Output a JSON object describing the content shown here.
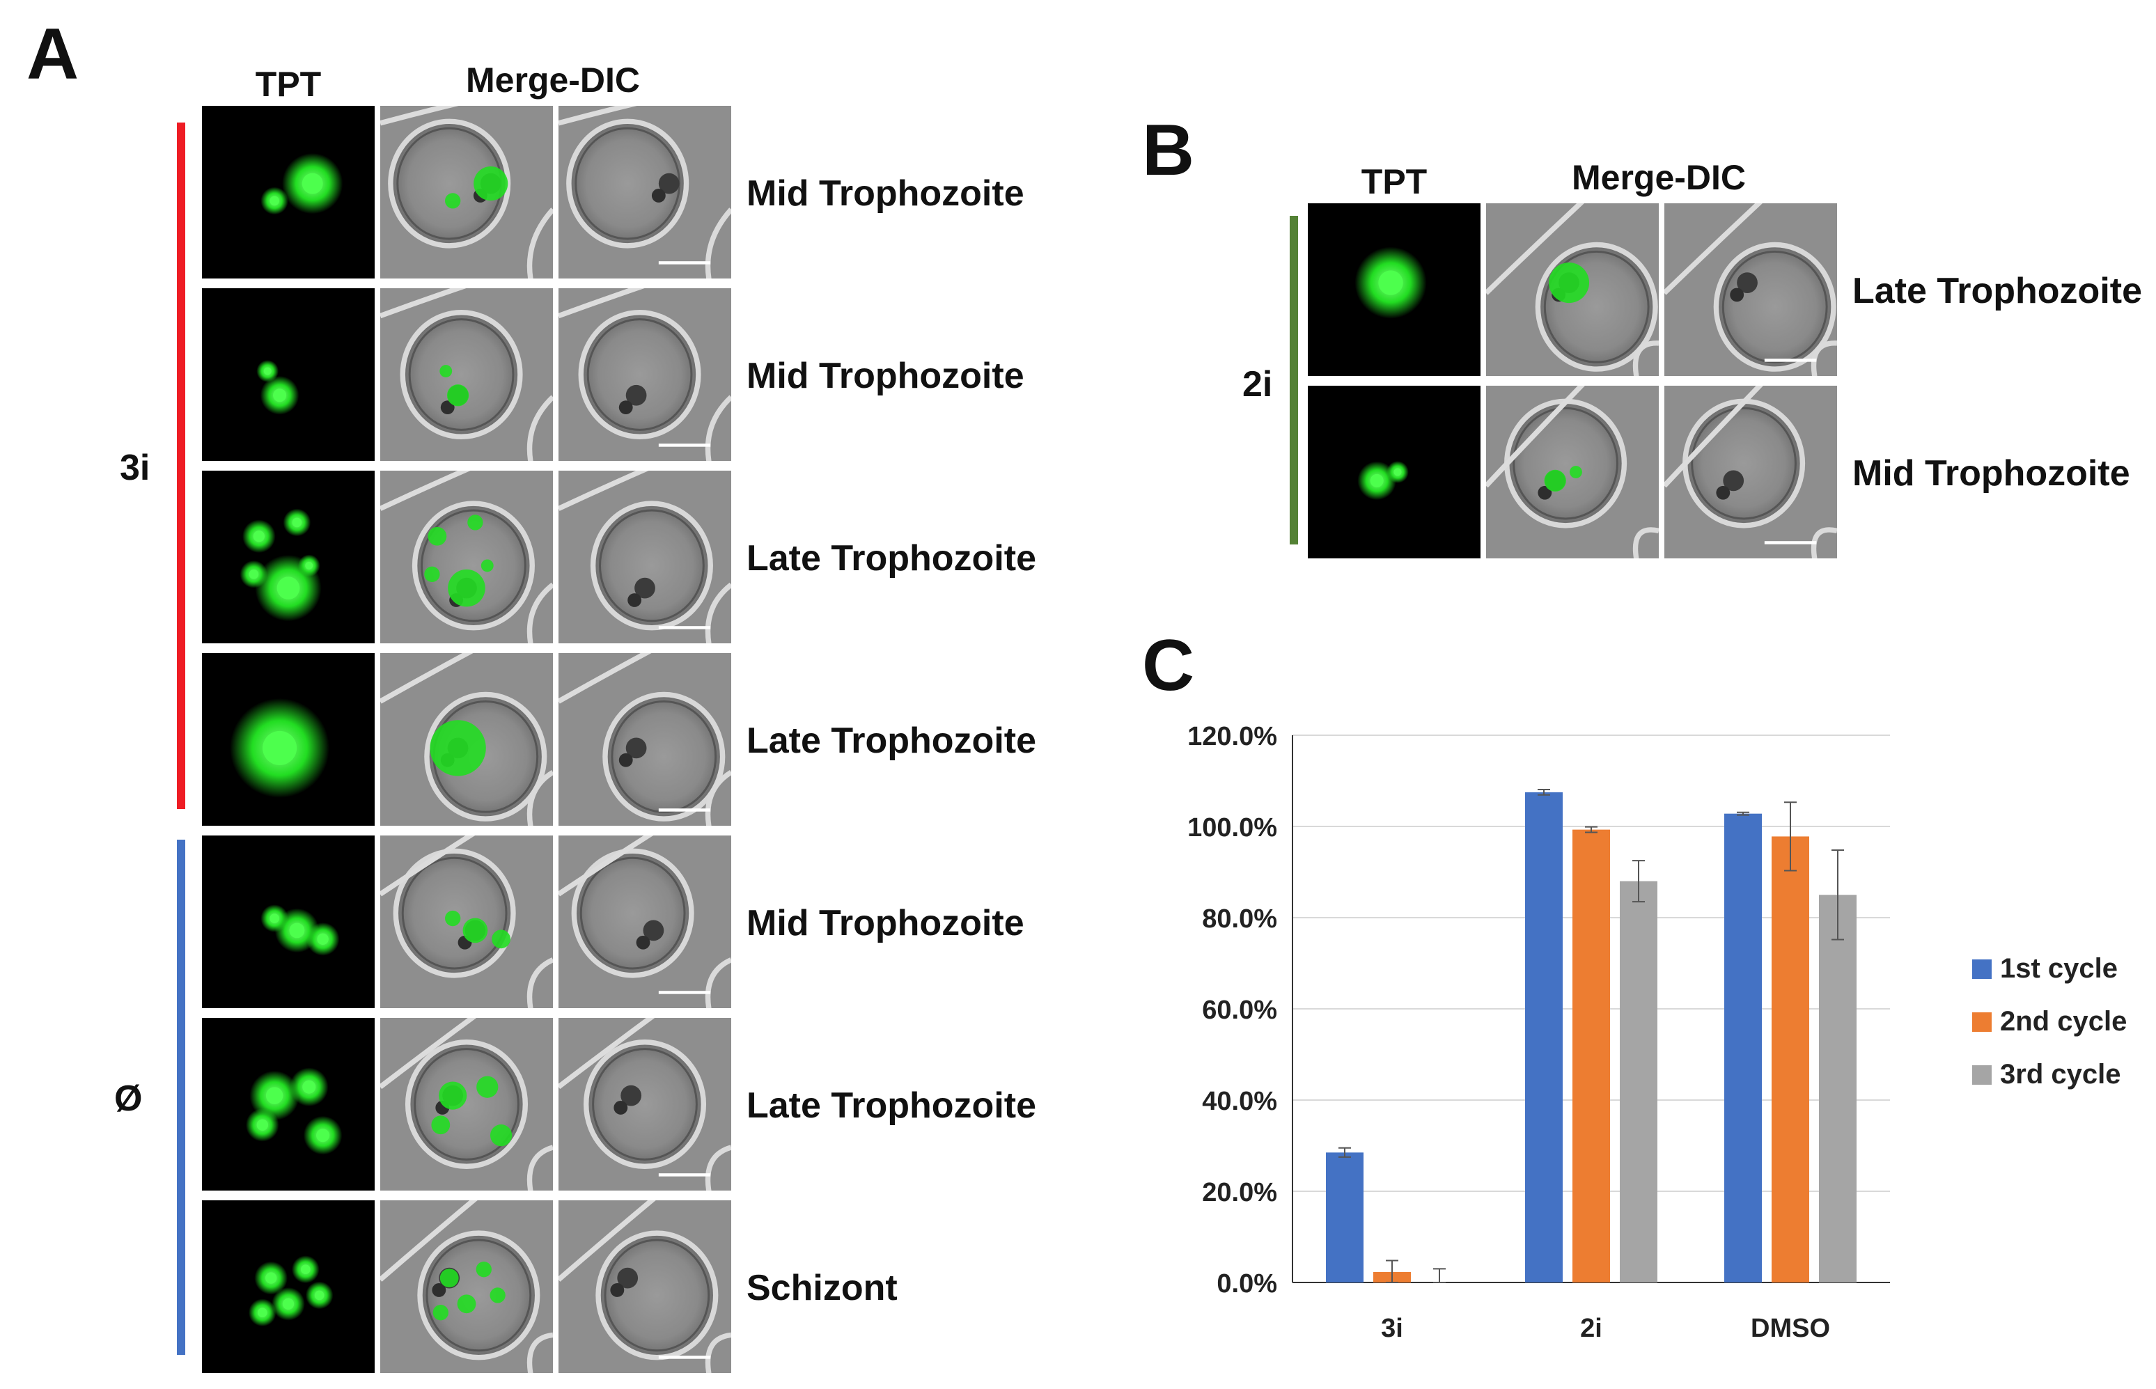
{
  "panel_a": {
    "letter": "A",
    "col_tpt": "TPT",
    "col_merge": "Merge-DIC",
    "group_3i": "3i",
    "group_null": "Ø",
    "rows": [
      {
        "label": "Mid Trophozoite"
      },
      {
        "label": "Mid Trophozoite"
      },
      {
        "label": "Late Trophozoite"
      },
      {
        "label": "Late Trophozoite"
      },
      {
        "label": "Mid Trophozoite"
      },
      {
        "label": "Late Trophozoite"
      },
      {
        "label": "Schizont"
      }
    ],
    "colors": {
      "group_3i_bar": "#ee1c24",
      "group_null_bar": "#4472c4",
      "fluorescence": "#22dd22"
    }
  },
  "panel_b": {
    "letter": "B",
    "col_tpt": "TPT",
    "col_merge": "Merge-DIC",
    "group_2i": "2i",
    "rows": [
      {
        "label": "Late Trophozoite"
      },
      {
        "label": "Mid Trophozoite"
      }
    ],
    "colors": {
      "group_2i_bar": "#548235"
    }
  },
  "panel_c": {
    "letter": "C",
    "chart_data": {
      "type": "bar",
      "categories": [
        "3i",
        "2i",
        "DMSO"
      ],
      "series": [
        {
          "name": "1st cycle",
          "color": "#4472c4",
          "values": [
            28.5,
            107.5,
            102.8
          ],
          "errors": [
            1.0,
            0.6,
            0.3
          ]
        },
        {
          "name": "2nd cycle",
          "color": "#ed7d31",
          "values": [
            2.3,
            99.3,
            97.8
          ],
          "errors": [
            2.5,
            0.6,
            7.5
          ]
        },
        {
          "name": "3rd cycle",
          "color": "#a5a5a5",
          "values": [
            0.0,
            88.0,
            85.0
          ],
          "errors": [
            3.0,
            4.5,
            9.8
          ]
        }
      ],
      "ylim": [
        0,
        120
      ],
      "yticks": [
        0,
        20,
        40,
        60,
        80,
        100,
        120
      ],
      "ytick_labels": [
        "0.0%",
        "20.0%",
        "40.0%",
        "60.0%",
        "80.0%",
        "100.0%",
        "120.0%"
      ],
      "grid": true,
      "legend_position": "right",
      "title": "",
      "xlabel": "",
      "ylabel": ""
    }
  }
}
